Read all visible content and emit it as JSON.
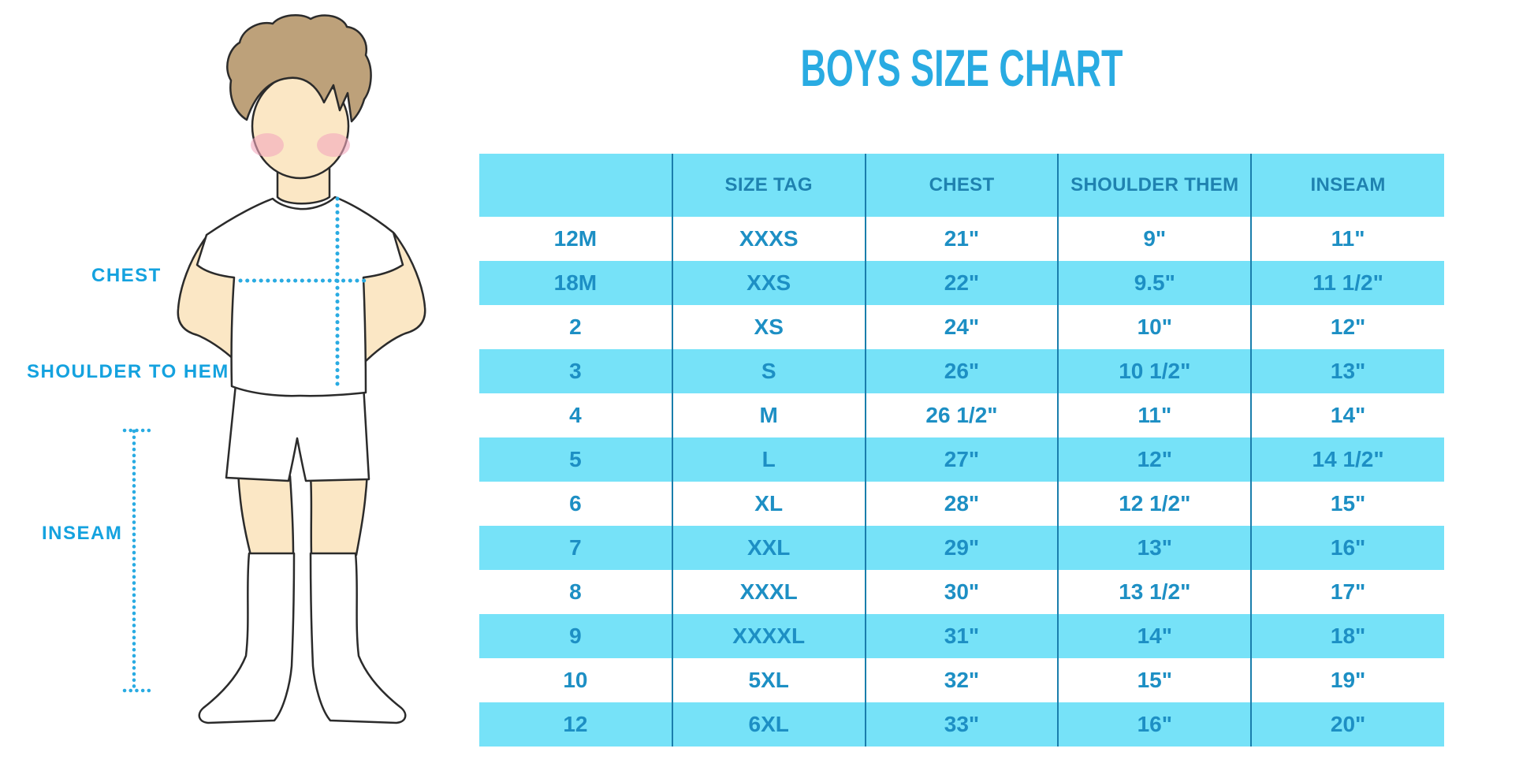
{
  "title": "BOYS SIZE CHART",
  "figure": {
    "chest_label": "CHEST",
    "shoulder_to_hem_label": "SHOULDER TO HEM",
    "inseam_label": "INSEAM",
    "illustration": "boy-front-view-white-tshirt-shorts-knee-socks",
    "measure_lines": [
      "chest-dotted-line",
      "shoulder-to-hem-dotted-line",
      "inseam-dotted-line"
    ]
  },
  "chart_data": {
    "type": "table",
    "title": "BOYS SIZE CHART",
    "columns": [
      "",
      "SIZE TAG",
      "CHEST",
      "SHOULDER THEM",
      "INSEAM"
    ],
    "rows": [
      [
        "12M",
        "XXXS",
        "21\"",
        "9\"",
        "11\""
      ],
      [
        "18M",
        "XXS",
        "22\"",
        "9.5\"",
        "11 1/2\""
      ],
      [
        "2",
        "XS",
        "24\"",
        "10\"",
        "12\""
      ],
      [
        "3",
        "S",
        "26\"",
        "10 1/2\"",
        "13\""
      ],
      [
        "4",
        "M",
        "26 1/2\"",
        "11\"",
        "14\""
      ],
      [
        "5",
        "L",
        "27\"",
        "12\"",
        "14 1/2\""
      ],
      [
        "6",
        "XL",
        "28\"",
        "12 1/2\"",
        "15\""
      ],
      [
        "7",
        "XXL",
        "29\"",
        "13\"",
        "16\""
      ],
      [
        "8",
        "XXXL",
        "30\"",
        "13 1/2\"",
        "17\""
      ],
      [
        "9",
        "XXXXL",
        "31\"",
        "14\"",
        "18\""
      ],
      [
        "10",
        "5XL",
        "32\"",
        "15\"",
        "19\""
      ],
      [
        "12",
        "6XL",
        "33\"",
        "16\"",
        "20\""
      ]
    ],
    "layout": {
      "zebra_striping": true,
      "first_data_row": "white",
      "alternate_row": "cyan",
      "column_dividers": true,
      "outer_border": false
    }
  },
  "colors": {
    "accent": "#29ABE2",
    "label_blue": "#14A2DF",
    "row_cyan": "#76E2F8",
    "cell_text": "#1D8FC4",
    "header_text": "#1F82B0",
    "divider": "#1A7EAC",
    "skin": "#FBE7C5",
    "hair": "#BDA17A",
    "blush": "#F4A9BD",
    "outline": "#2B2B2B",
    "garment": "#FFFFFF"
  }
}
